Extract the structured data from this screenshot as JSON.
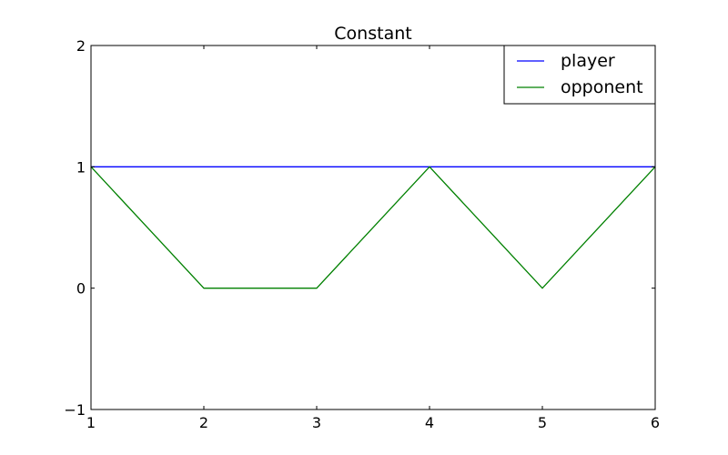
{
  "chart_data": {
    "type": "line",
    "title": "Constant",
    "xlabel": "",
    "ylabel": "",
    "xlim": [
      1,
      6
    ],
    "ylim": [
      -1,
      2
    ],
    "x_ticks": [
      1,
      2,
      3,
      4,
      5,
      6
    ],
    "x_tick_labels": [
      "1",
      "2",
      "3",
      "4",
      "5",
      "6"
    ],
    "y_ticks": [
      -1,
      0,
      1,
      2
    ],
    "y_tick_labels": [
      "−1",
      "0",
      "1",
      "2"
    ],
    "grid": false,
    "legend_position": "top-right",
    "x": [
      1,
      2,
      3,
      4,
      5,
      6
    ],
    "series": [
      {
        "name": "player",
        "color": "#0000ff",
        "values": [
          1,
          1,
          1,
          1,
          1,
          1
        ]
      },
      {
        "name": "opponent",
        "color": "#008000",
        "values": [
          1,
          0,
          0,
          1,
          0,
          1
        ]
      }
    ]
  }
}
